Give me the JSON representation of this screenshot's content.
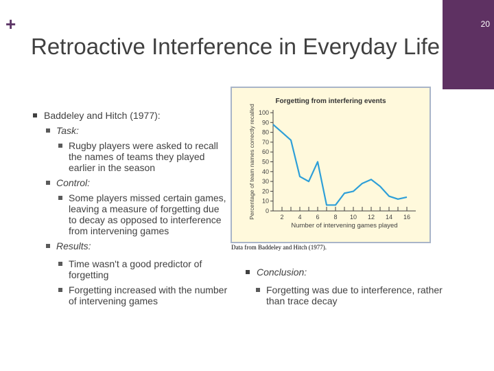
{
  "slide": {
    "number": "20",
    "title": "Retroactive Interference in Everyday Life"
  },
  "bullets": {
    "study": "Baddeley and Hitch (1977):",
    "task_label": "Task:",
    "task_detail": "Rugby players were asked to recall the names of teams they played earlier in the season",
    "control_label": "Control:",
    "control_detail": "Some players missed certain games, leaving a measure of forgetting due to decay as opposed to interference from intervening games",
    "results_label": "Results:",
    "results_1": "Time wasn't a good predictor of forgetting",
    "results_2": "Forgetting increased with the number of intervening games"
  },
  "caption": "Data from Baddeley and Hitch (1977).",
  "conclusion": {
    "label": "Conclusion:",
    "detail": "Forgetting was due to interference, rather than trace decay"
  },
  "colors": {
    "accent": "#5e3162",
    "chart_bg": "#fff9dc",
    "line": "#2e9fd8",
    "text": "#404040"
  },
  "chart_data": {
    "type": "line",
    "title": "Forgetting from interfering events",
    "xlabel": "Number of intervening games played",
    "ylabel": "Percentage of team names correctly recalled",
    "x_ticks": [
      2,
      4,
      6,
      8,
      10,
      12,
      14,
      16
    ],
    "y_ticks": [
      0,
      10,
      20,
      30,
      40,
      50,
      60,
      70,
      80,
      90,
      100
    ],
    "xlim": [
      1,
      17
    ],
    "ylim": [
      0,
      100
    ],
    "grid": false,
    "series": [
      {
        "x": [
          1,
          2,
          3,
          4,
          5,
          6,
          7,
          8,
          9,
          10,
          11,
          12,
          13,
          14,
          15,
          16
        ],
        "values": [
          88,
          80,
          72,
          35,
          30,
          50,
          6,
          6,
          18,
          20,
          28,
          32,
          25,
          15,
          12,
          14
        ]
      }
    ]
  }
}
